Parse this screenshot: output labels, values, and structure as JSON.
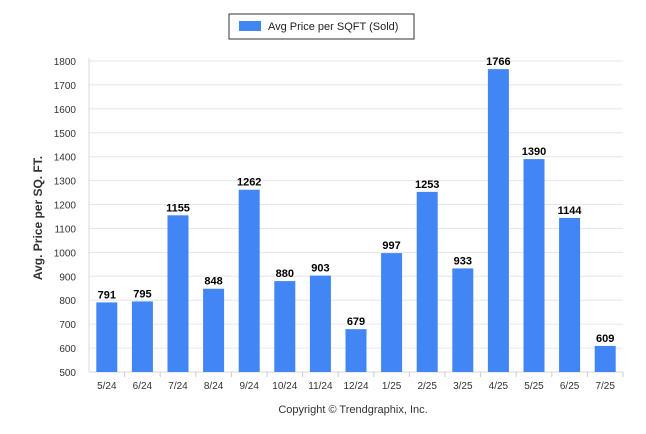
{
  "chart_data": {
    "type": "bar",
    "categories": [
      "5/24",
      "6/24",
      "7/24",
      "8/24",
      "9/24",
      "10/24",
      "11/24",
      "12/24",
      "1/25",
      "2/25",
      "3/25",
      "4/25",
      "5/25",
      "6/25",
      "7/25"
    ],
    "series": [
      {
        "name": "Avg Price per SQFT (Sold)",
        "values": [
          791,
          795,
          1155,
          848,
          1262,
          880,
          903,
          679,
          997,
          1253,
          933,
          1766,
          1390,
          1144,
          609
        ]
      }
    ],
    "ylabel": "Avg. Price per SQ. FT.",
    "xlabel": "",
    "ylim": [
      500,
      1800
    ],
    "yticks": [
      500,
      600,
      700,
      800,
      900,
      1000,
      1100,
      1200,
      1300,
      1400,
      1500,
      1600,
      1700,
      1800
    ],
    "grid": true,
    "legend_position": "top-center",
    "colors": {
      "bar": "#4285f4",
      "grid": "#e6e6e6"
    }
  },
  "footer": {
    "copyright": "Copyright © Trendgraphix, Inc."
  }
}
